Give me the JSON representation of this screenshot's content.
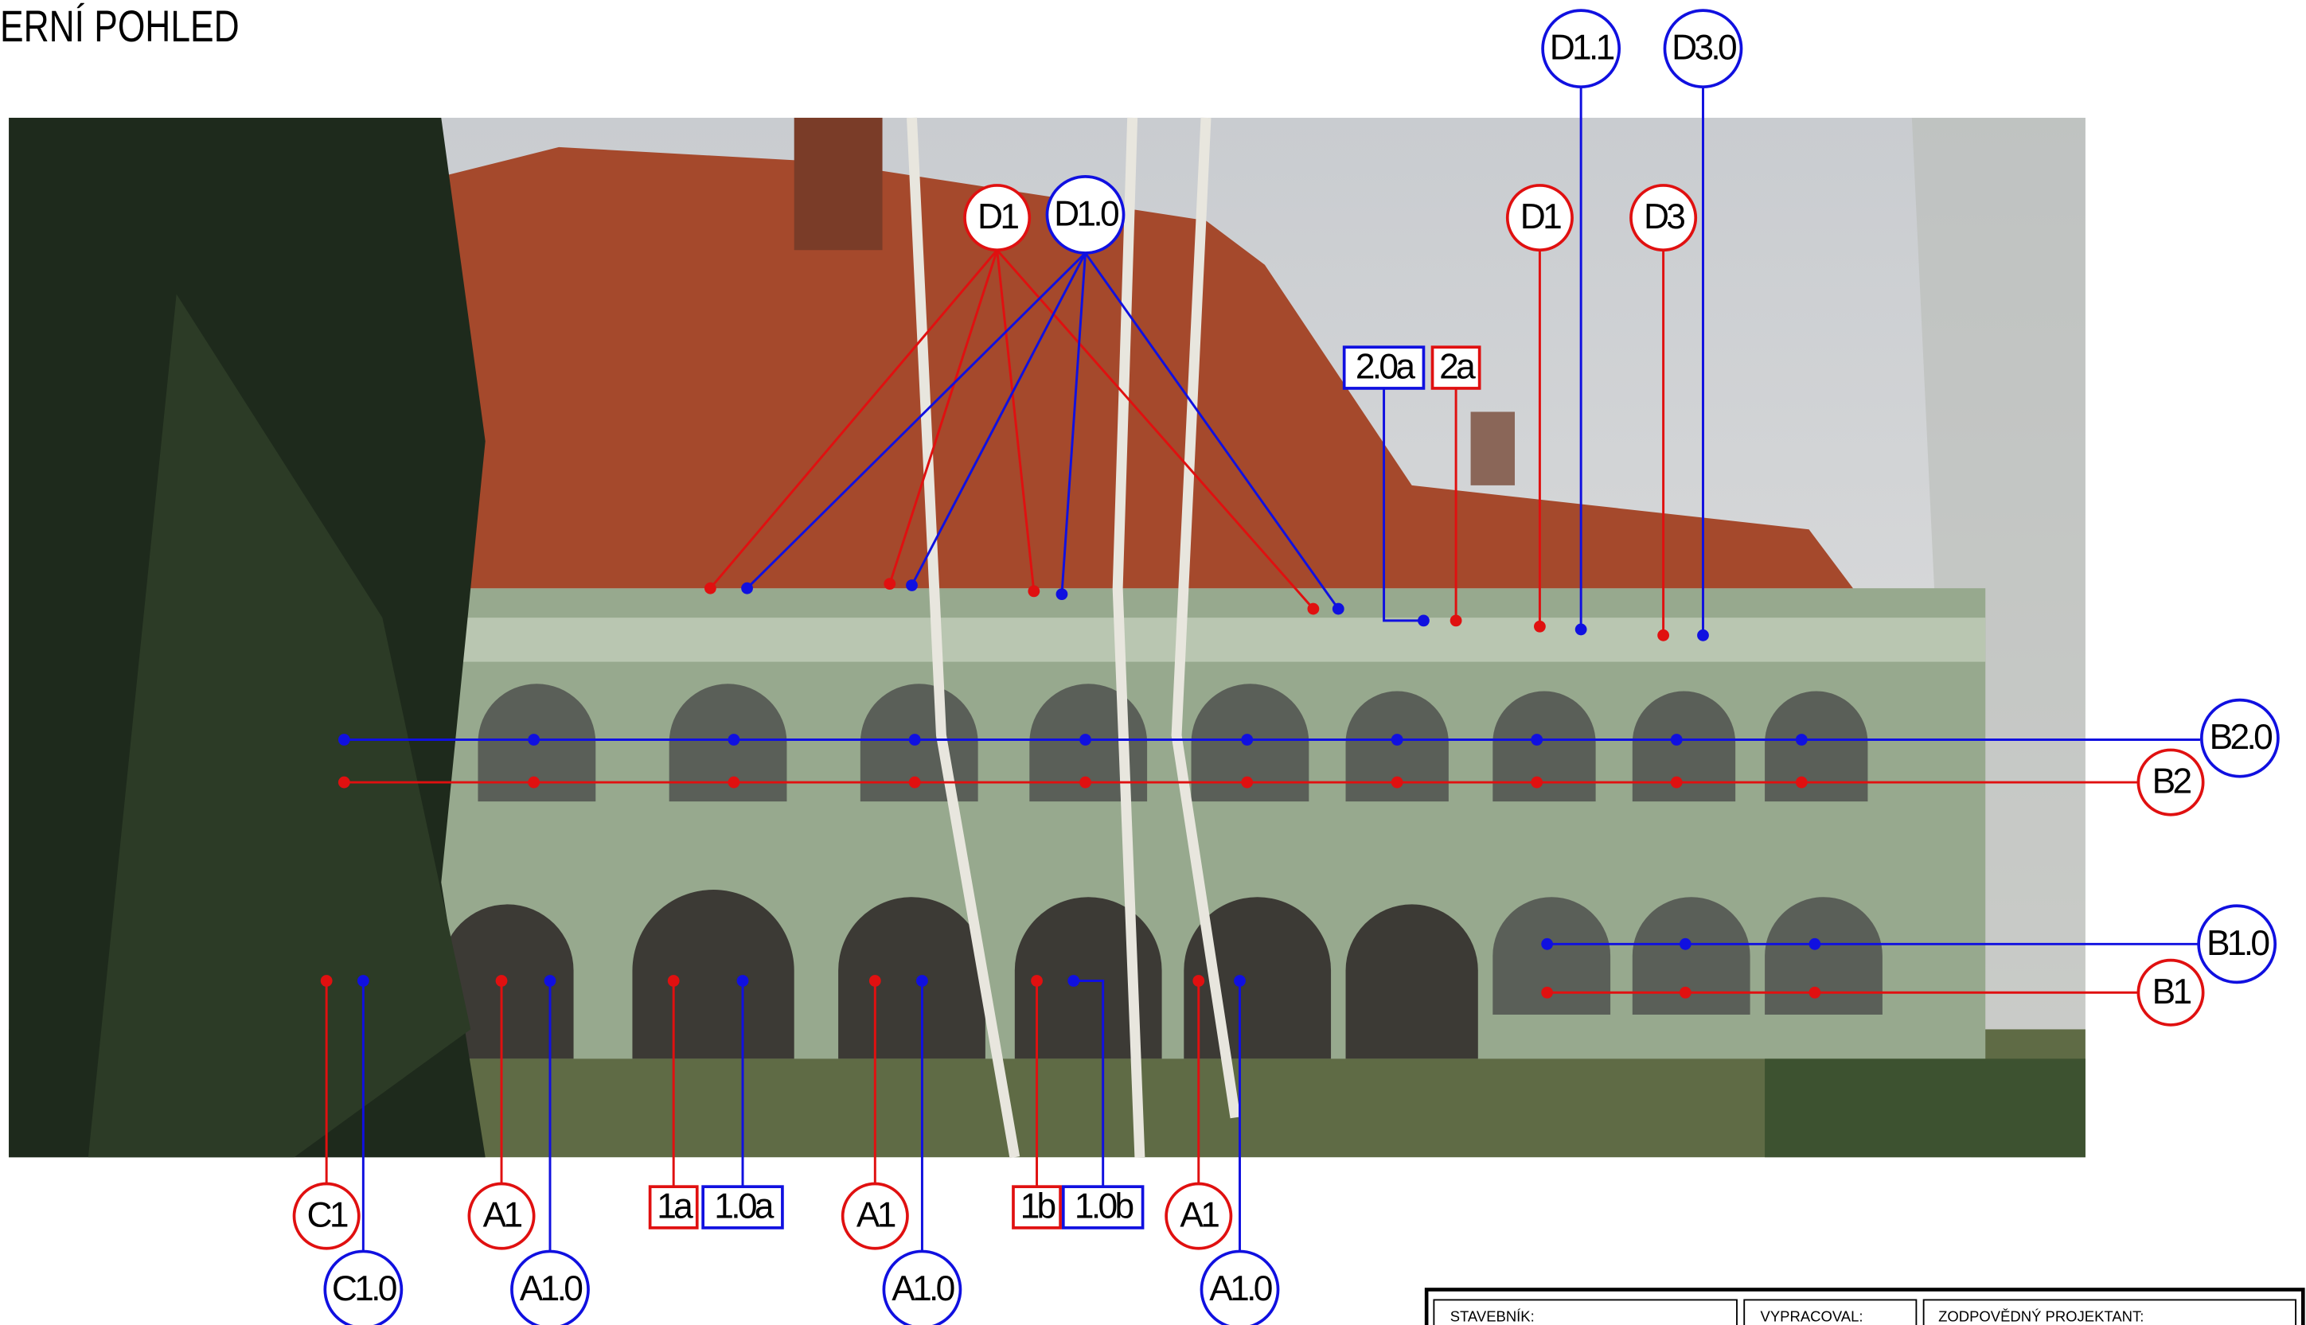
{
  "title": "ERNÍ  POHLED",
  "labels": [
    "D1.1",
    "D3.0",
    "D1",
    "D1.0",
    "D1",
    "D3",
    "2.0a",
    "2a",
    "B2.0",
    "B2",
    "B1.0",
    "B1",
    "C1",
    "C1.0",
    "A1",
    "A1.0",
    "1a",
    "1.0a",
    "A1",
    "A1.0",
    "1b",
    "1.0b",
    "A1",
    "A1.0"
  ],
  "title_block": [
    "STAVEBNÍK:",
    "VYPRACOVAL:",
    "ZODPOVĚDNÝ PROJEKTANT:"
  ]
}
